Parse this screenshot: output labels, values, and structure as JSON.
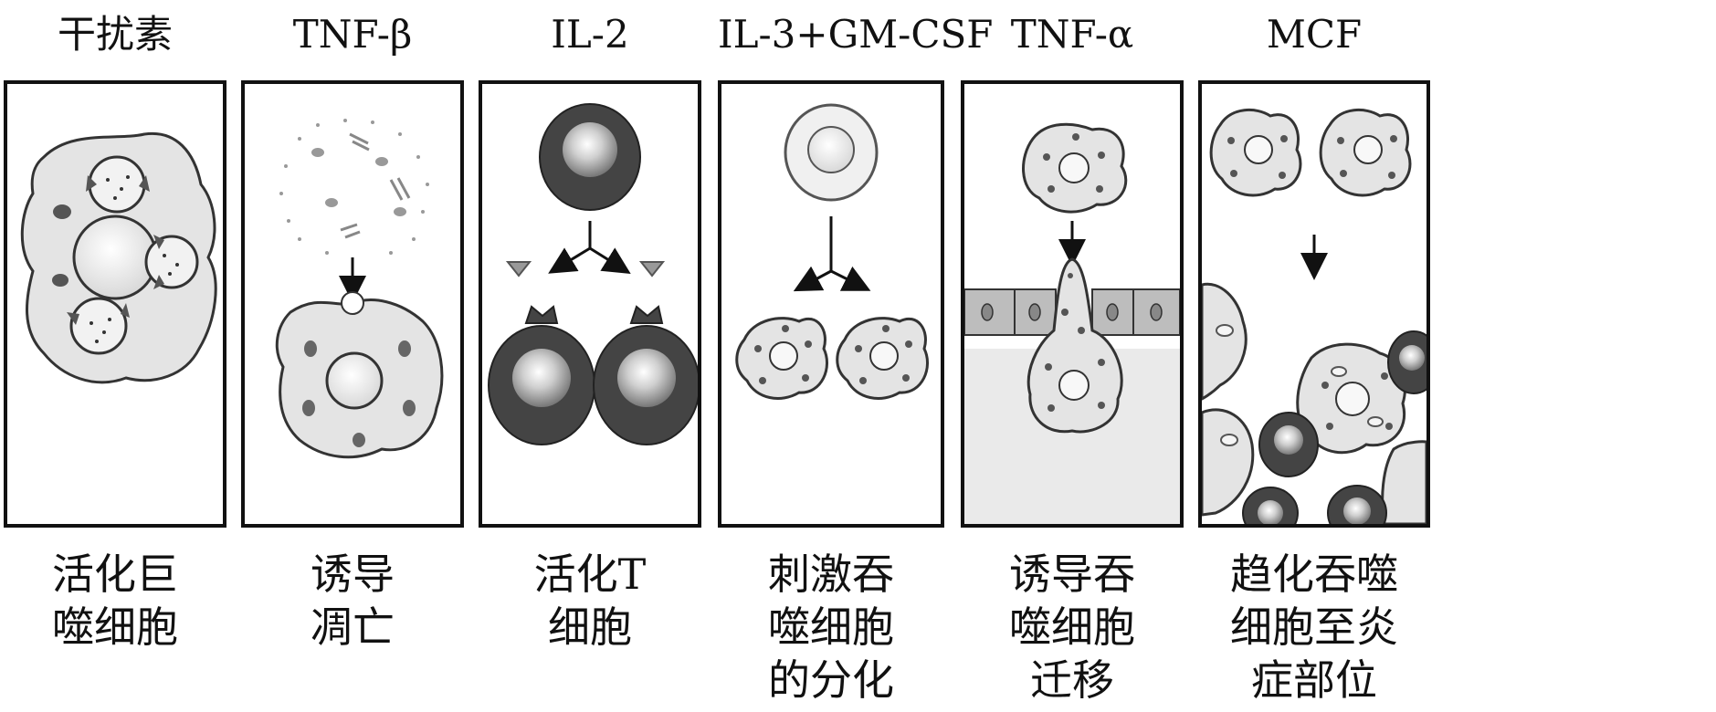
{
  "panels": [
    {
      "id": "interferon",
      "title": "干扰素",
      "caption": [
        "活化巨",
        "噬细胞"
      ]
    },
    {
      "id": "tnf-beta",
      "title": "TNF-β",
      "caption": [
        "诱导",
        "凋亡"
      ]
    },
    {
      "id": "il-2",
      "title": "IL-2",
      "caption": [
        "活化T",
        "细胞"
      ]
    },
    {
      "id": "il-3-gm-csf",
      "title": "IL-3+GM-CSF",
      "caption": [
        "刺激吞",
        "噬细胞",
        "的分化"
      ]
    },
    {
      "id": "tnf-alpha",
      "title": "TNF-α",
      "caption": [
        "诱导吞",
        "噬细胞",
        "迁移"
      ]
    },
    {
      "id": "mcf",
      "title": "MCF",
      "caption": [
        "趋化吞噬",
        "细胞至炎",
        "症部位"
      ]
    }
  ]
}
